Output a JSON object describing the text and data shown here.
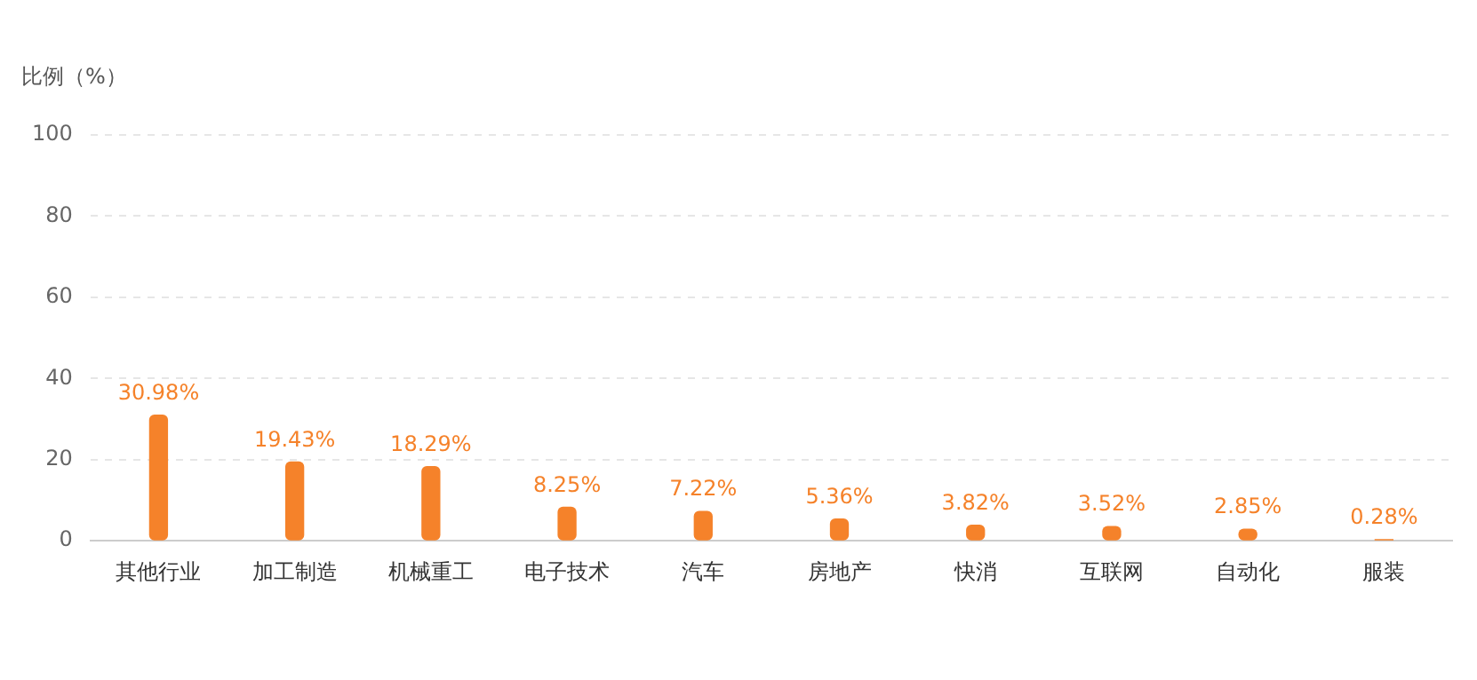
{
  "chart_data": {
    "type": "bar",
    "ylabel": "比例（%）",
    "categories": [
      "其他行业",
      "加工制造",
      "机械重工",
      "电子技术",
      "汽车",
      "房地产",
      "快消",
      "互联网",
      "自动化",
      "服装"
    ],
    "values": [
      30.98,
      19.43,
      18.29,
      8.25,
      7.22,
      5.36,
      3.82,
      3.52,
      2.85,
      0.28
    ],
    "color": "#f5822a",
    "ylim": [
      0,
      100
    ],
    "yticks": [
      0,
      20,
      40,
      60,
      80,
      100
    ],
    "grid": "y",
    "legend": false,
    "value_labels": [
      "30.98%",
      "19.43%",
      "18.29%",
      "8.25%",
      "7.22%",
      "5.36%",
      "3.82%",
      "3.52%",
      "2.85%",
      "0.28%"
    ]
  }
}
